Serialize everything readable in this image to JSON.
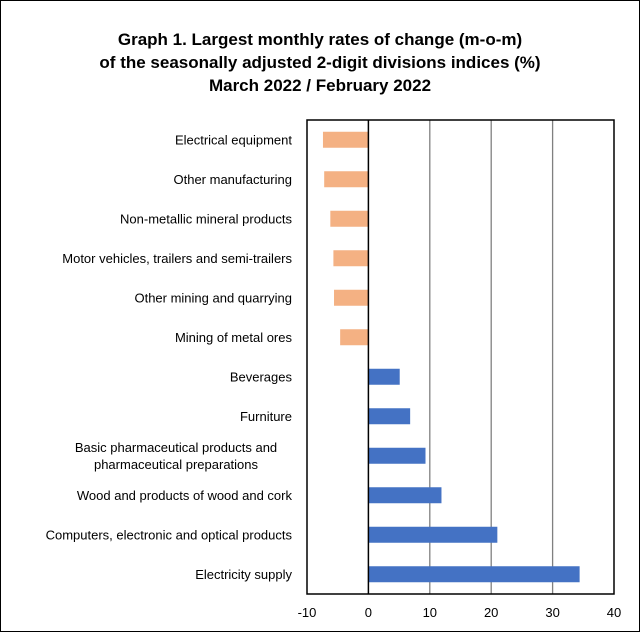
{
  "chart_data": {
    "type": "bar",
    "orientation": "horizontal",
    "title_lines": [
      "Graph 1. Largest monthly rates of change (m-o-m)",
      "of the seasonally adjusted 2-digit divisions indices (%)",
      "March 2022 / February 2022"
    ],
    "categories": [
      [
        "Electrical equipment"
      ],
      [
        "Other manufacturing"
      ],
      [
        "Non-metallic mineral products"
      ],
      [
        "Motor vehicles, trailers and semi-trailers"
      ],
      [
        "Other mining and quarrying"
      ],
      [
        "Mining of metal ores"
      ],
      [
        "Beverages"
      ],
      [
        "Furniture"
      ],
      [
        "Basic pharmaceutical products and",
        "pharmaceutical preparations"
      ],
      [
        "Wood and products of wood and cork"
      ],
      [
        "Computers, electronic and optical products"
      ],
      [
        "Electricity supply"
      ]
    ],
    "values": [
      -7.4,
      -7.2,
      -6.2,
      -5.7,
      -5.6,
      -4.6,
      5.1,
      6.8,
      9.3,
      11.9,
      21.0,
      34.4
    ],
    "xlim": [
      -10,
      40
    ],
    "ticks": [
      "-10",
      "0",
      "10",
      "20",
      "30",
      "40"
    ],
    "grid": "vertical",
    "xlabel": "",
    "ylabel": "",
    "colors": {
      "negative": "#F4B183",
      "positive": "#4472C4",
      "grid": "#808080",
      "axis": "#000000"
    }
  }
}
